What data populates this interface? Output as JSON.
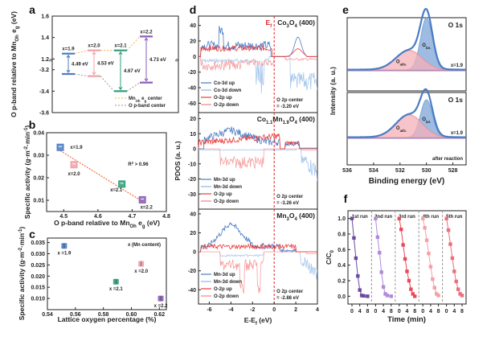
{
  "chart_data": [
    {
      "panel": "a",
      "type": "diagram",
      "ylabel": "O p-band relative to Mn_Oh e_g (eV)",
      "yticks_upper": [
        "1.6",
        "1.4",
        "1.2"
      ],
      "yticks_lower": [
        "-3.2",
        "-3.4",
        "-3.6"
      ],
      "upper_range": [
        1.15,
        1.6
      ],
      "lower_range": [
        -3.6,
        -3.15
      ],
      "levels": [
        {
          "label": "x=1.9",
          "eg": 1.25,
          "op": -3.24,
          "gap": "4.49 eV",
          "color": "#4a7cc4"
        },
        {
          "label": "x=2.0",
          "eg": 1.28,
          "op": -3.26,
          "gap": "4.53 eV",
          "color": "#f0a0a8"
        },
        {
          "label": "x=2.1",
          "eg": 1.28,
          "op": -3.4,
          "gap": "4.67 eV",
          "color": "#2e9e78"
        },
        {
          "label": "x=2.2",
          "eg": 1.41,
          "op": -3.32,
          "gap": "4.73 eV",
          "color": "#8a5cb8"
        }
      ],
      "legend": [
        "Mn_Oh e_g center",
        "O p-band center"
      ],
      "legend_colors": [
        "#f5b050",
        "#999999"
      ]
    },
    {
      "panel": "b",
      "type": "scatter",
      "xlabel": "O p-band relative to Mn_Oh e_g (eV)",
      "ylabel": "Specific activity (g·m⁻²·min⁻¹)",
      "xlim": [
        4.45,
        4.8
      ],
      "ylim": [
        0.005,
        0.04
      ],
      "xticks": [
        "4.5",
        "4.6",
        "4.7",
        "4.8"
      ],
      "yticks": [
        "0.01",
        "0.02",
        "0.03",
        "0.04"
      ],
      "points": [
        {
          "x": 4.49,
          "y": 0.0335,
          "label": "x=1.9",
          "color": "#4a7cc4"
        },
        {
          "x": 4.53,
          "y": 0.0258,
          "label": "x=2.0",
          "color": "#f0a0a8"
        },
        {
          "x": 4.67,
          "y": 0.0172,
          "label": "x=2.1",
          "color": "#2e9e78"
        },
        {
          "x": 4.73,
          "y": 0.0102,
          "label": "x=2.2",
          "color": "#8a5cb8"
        }
      ],
      "fit": {
        "x": [
          4.49,
          4.73
        ],
        "y": [
          0.032,
          0.0095
        ],
        "color": "#f0703a"
      },
      "annotation": "R² > 0.96"
    },
    {
      "panel": "c",
      "type": "scatter",
      "xlabel": "Lattice oxygen percentage (%)",
      "ylabel": "Specific activity (g·m⁻²·min⁻¹)",
      "xlim": [
        0.54,
        0.625
      ],
      "ylim": [
        0.005,
        0.037
      ],
      "xticks": [
        "0.54",
        "0.56",
        "0.58",
        "0.60",
        "0.62"
      ],
      "yticks": [
        "0.010",
        "0.015",
        "0.020",
        "0.025",
        "0.030",
        "0.035"
      ],
      "points": [
        {
          "x": 0.552,
          "y": 0.0335,
          "label": "x =1.9",
          "color": "#4a7cc4"
        },
        {
          "x": 0.607,
          "y": 0.0255,
          "label": "x =2.0",
          "color": "#f0a0a8"
        },
        {
          "x": 0.589,
          "y": 0.0175,
          "label": "x =2.1",
          "color": "#2e9e78"
        },
        {
          "x": 0.621,
          "y": 0.01,
          "label": "x =2.2",
          "color": "#8a5cb8"
        }
      ],
      "annotation": "x (Mn content)"
    },
    {
      "panel": "d",
      "type": "line",
      "xlabel": "E-E_f (eV)",
      "ylabel": "PDOS (a. u.)",
      "xlim": [
        -7,
        4
      ],
      "xticks": [
        "-6",
        "-4",
        "-2",
        "0",
        "2",
        "4"
      ],
      "fermi_label": "E_f",
      "subplots": [
        {
          "title": "Co3O4 (400)",
          "ylim": [
            -72,
            52
          ],
          "yticks": [
            "40",
            "20",
            "0",
            "-20",
            "-40",
            "-60"
          ],
          "legend": [
            "Co-3d up",
            "Co-3d down",
            "O-2p   up",
            "O-2p   down"
          ],
          "center": "O 2p center\n= -3.20 eV"
        },
        {
          "title": "Co1.1Mn1.9O4 (400)",
          "ylim": [
            -40,
            24
          ],
          "yticks": [
            "20",
            "10",
            "0",
            "-10",
            "-20",
            "-30",
            "-40"
          ],
          "legend": [
            "Mn-3d up",
            "Mn-3d down",
            "O-2p   up",
            "O-2p   down"
          ],
          "center": "O 2p center\n= -3.26 eV"
        },
        {
          "title": "Mn3O4 (400)",
          "ylim": [
            -55,
            45
          ],
          "yticks": [
            "40",
            "20",
            "0",
            "-20",
            "-40"
          ],
          "legend": [
            "Mn-3d up",
            "Mn-3d down",
            "O-2p   up",
            "O-2p   down"
          ],
          "center": "O 2p center\n= -2.88 eV"
        }
      ],
      "series_colors": [
        "#4a7cc4",
        "#a8c8ec",
        "#ee3a3a",
        "#f7a0a0"
      ]
    },
    {
      "panel": "e",
      "type": "area",
      "xlabel": "Binding energy (eV)",
      "ylabel": "Intensity (a. u.)",
      "xlim": [
        536,
        527
      ],
      "xticks": [
        "536",
        "534",
        "532",
        "530",
        "528"
      ],
      "subplots": [
        {
          "title": "O 1s",
          "sample": "x=1.9",
          "note": "",
          "peaks": [
            {
              "name": "O_lat.",
              "center": 530.0,
              "height": 0.75
            },
            {
              "name": "O_ads.",
              "center": 531.3,
              "height": 0.28
            }
          ]
        },
        {
          "title": "O 1s",
          "sample": "x=1.9",
          "note": "after reaction",
          "peaks": [
            {
              "name": "O_lat.",
              "center": 530.0,
              "height": 0.55
            },
            {
              "name": "O_ads.",
              "center": 531.3,
              "height": 0.33
            }
          ]
        }
      ],
      "colors": {
        "envelope": "#4a7cc4",
        "lat": "#7ea6d8",
        "ads": "#f4b0b8"
      }
    },
    {
      "panel": "f",
      "type": "line",
      "xlabel": "Time (min)",
      "ylabel": "C/C0",
      "ylim": [
        -0.1,
        1.1
      ],
      "yticks": [
        "0.0",
        "0.2",
        "0.4",
        "0.6",
        "0.8",
        "1.0"
      ],
      "xticks": [
        "0",
        "4",
        "8"
      ],
      "runs": [
        {
          "name": "1st run",
          "color": "#6a4a9c",
          "t": [
            0,
            1,
            2,
            3,
            4,
            5,
            6,
            8
          ],
          "c": [
            1.0,
            0.75,
            0.49,
            0.26,
            0.08,
            0.01,
            0.005,
            0.0
          ]
        },
        {
          "name": "2nd run",
          "color": "#b08ad8",
          "t": [
            0,
            1,
            2,
            3,
            4,
            5,
            6,
            8
          ],
          "c": [
            1.0,
            0.76,
            0.56,
            0.31,
            0.12,
            0.03,
            0.01,
            0.0
          ]
        },
        {
          "name": "3rd run",
          "color": "#e84a5a",
          "t": [
            0,
            1,
            2,
            3,
            4,
            5,
            6,
            7,
            8
          ],
          "c": [
            1.0,
            0.86,
            0.66,
            0.48,
            0.32,
            0.2,
            0.09,
            0.03,
            0.0
          ]
        },
        {
          "name": "4th run",
          "color": "#f5a0a8",
          "t": [
            0,
            1,
            2,
            3,
            4,
            5,
            6,
            7,
            8
          ],
          "c": [
            1.0,
            0.88,
            0.72,
            0.55,
            0.38,
            0.22,
            0.11,
            0.03,
            0.01
          ]
        },
        {
          "name": "5th run",
          "color": "#ea6e7c",
          "t": [
            0,
            1,
            2,
            3,
            4,
            5,
            6,
            7,
            8
          ],
          "c": [
            1.0,
            0.85,
            0.67,
            0.49,
            0.32,
            0.19,
            0.09,
            0.03,
            0.01
          ]
        }
      ]
    }
  ],
  "panel_labels": [
    "a",
    "b",
    "c",
    "d",
    "e",
    "f"
  ]
}
